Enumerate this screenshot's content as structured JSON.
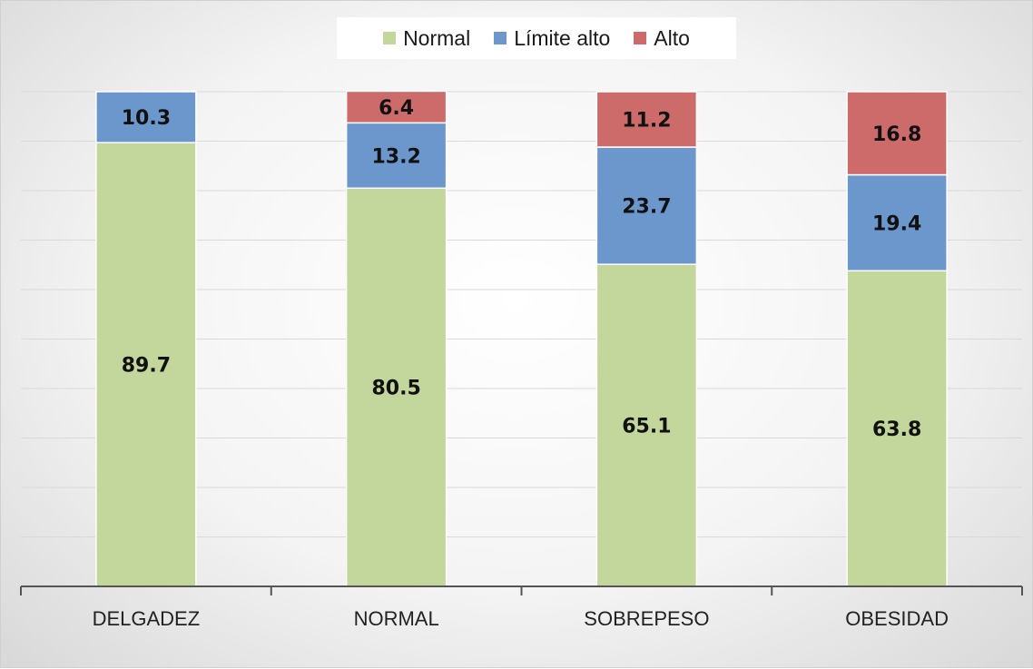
{
  "chart_data": {
    "type": "bar",
    "stacked": true,
    "categories": [
      "DELGADEZ",
      "NORMAL",
      "SOBREPESO",
      "OBESIDAD"
    ],
    "series": [
      {
        "name": "Normal",
        "color": "#c3d69b",
        "values": [
          89.7,
          80.5,
          65.1,
          63.8
        ]
      },
      {
        "name": "Límite alto",
        "color": "#6c97cd",
        "values": [
          10.3,
          13.2,
          23.7,
          19.4
        ]
      },
      {
        "name": "Alto",
        "color": "#cd6b6b",
        "values": [
          null,
          6.4,
          11.2,
          16.8
        ]
      }
    ],
    "title": "",
    "xlabel": "",
    "ylabel": "",
    "ylim": [
      0,
      100
    ],
    "grid": true,
    "legend": "top-center"
  }
}
